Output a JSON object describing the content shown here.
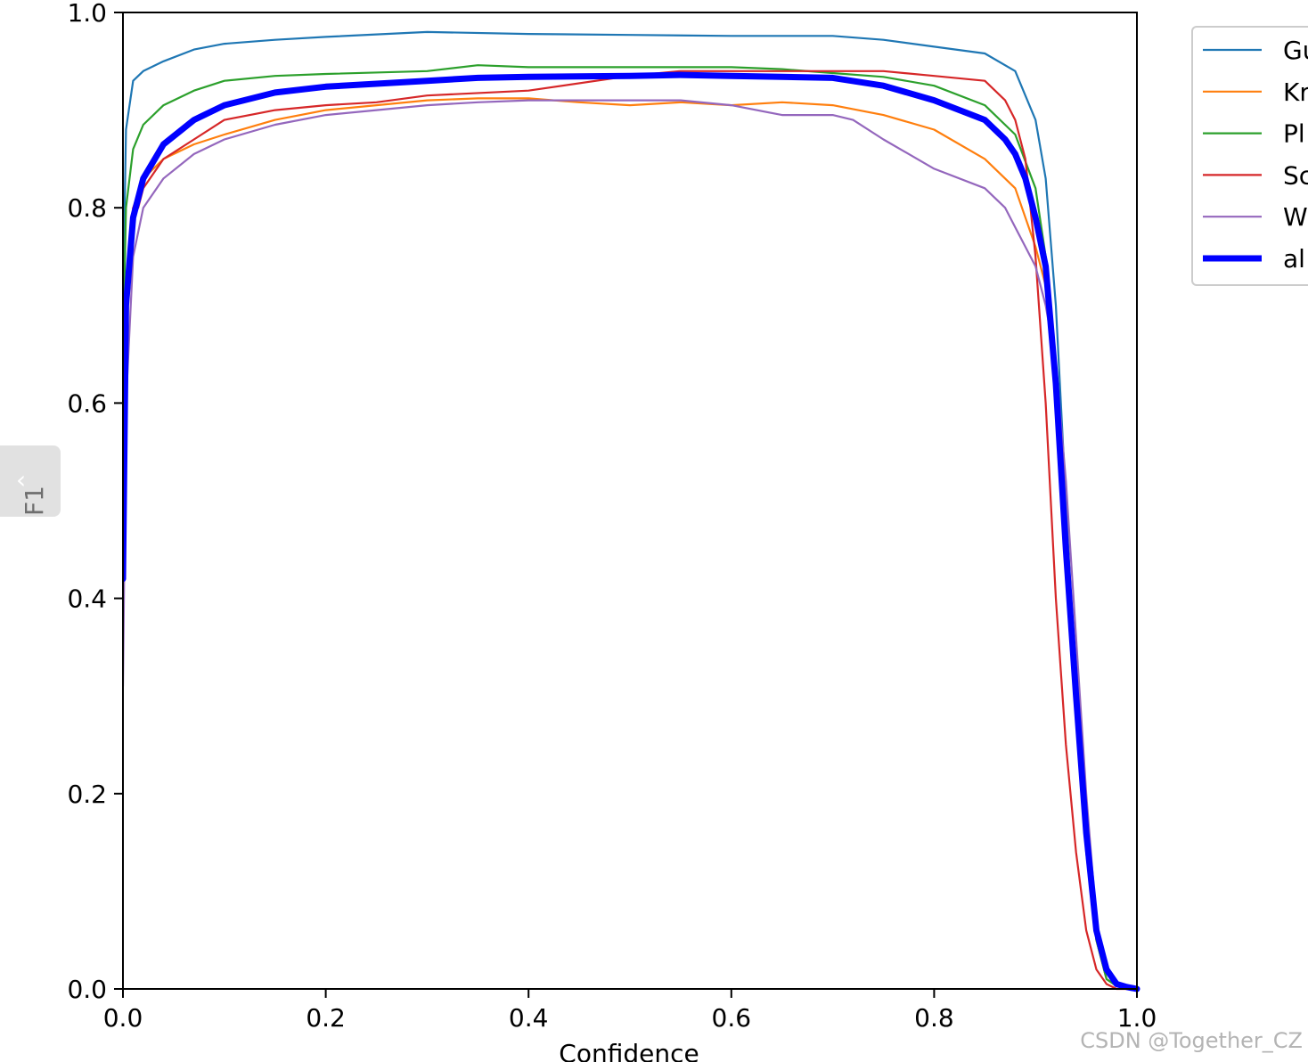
{
  "chart_data": {
    "type": "line",
    "xlabel": "Confidence",
    "ylabel": "F1",
    "xlim": [
      0.0,
      1.0
    ],
    "ylim": [
      0.0,
      1.0
    ],
    "x_ticks": [
      "0.0",
      "0.2",
      "0.4",
      "0.6",
      "0.8",
      "1.0"
    ],
    "y_ticks": [
      "0.0",
      "0.2",
      "0.4",
      "0.6",
      "0.8",
      "1.0"
    ],
    "grid": false,
    "legend_position": "outside-top-right",
    "series": [
      {
        "name": "Gu",
        "color": "#1f77b4",
        "linewidth": "thin",
        "x": [
          0.0,
          0.003,
          0.01,
          0.02,
          0.04,
          0.07,
          0.1,
          0.15,
          0.2,
          0.3,
          0.4,
          0.5,
          0.6,
          0.7,
          0.75,
          0.8,
          0.85,
          0.88,
          0.9,
          0.91,
          0.92,
          0.93,
          0.94,
          0.95,
          0.96,
          0.97,
          0.98,
          1.0
        ],
        "y": [
          0.7,
          0.88,
          0.93,
          0.94,
          0.95,
          0.962,
          0.968,
          0.972,
          0.975,
          0.98,
          0.978,
          0.977,
          0.976,
          0.976,
          0.972,
          0.965,
          0.958,
          0.94,
          0.89,
          0.83,
          0.7,
          0.5,
          0.3,
          0.14,
          0.05,
          0.01,
          0.003,
          0.0
        ]
      },
      {
        "name": "Kr",
        "color": "#ff7f0e",
        "linewidth": "thin",
        "x": [
          0.0,
          0.003,
          0.01,
          0.02,
          0.04,
          0.07,
          0.1,
          0.15,
          0.2,
          0.3,
          0.35,
          0.4,
          0.45,
          0.5,
          0.55,
          0.6,
          0.65,
          0.7,
          0.75,
          0.8,
          0.85,
          0.88,
          0.9,
          0.91,
          0.92,
          0.93,
          0.94,
          0.95,
          0.96,
          0.97,
          0.98,
          1.0
        ],
        "y": [
          0.55,
          0.72,
          0.8,
          0.83,
          0.85,
          0.865,
          0.875,
          0.89,
          0.9,
          0.91,
          0.912,
          0.912,
          0.908,
          0.905,
          0.908,
          0.905,
          0.908,
          0.905,
          0.895,
          0.88,
          0.85,
          0.82,
          0.76,
          0.72,
          0.62,
          0.46,
          0.3,
          0.15,
          0.05,
          0.01,
          0.003,
          0.0
        ]
      },
      {
        "name": "Pl",
        "color": "#2ca02c",
        "linewidth": "thin",
        "x": [
          0.0,
          0.003,
          0.01,
          0.02,
          0.04,
          0.07,
          0.1,
          0.15,
          0.2,
          0.3,
          0.35,
          0.4,
          0.5,
          0.6,
          0.65,
          0.7,
          0.75,
          0.8,
          0.85,
          0.88,
          0.9,
          0.91,
          0.92,
          0.93,
          0.94,
          0.95,
          0.96,
          0.97,
          0.98,
          1.0
        ],
        "y": [
          0.65,
          0.8,
          0.86,
          0.885,
          0.905,
          0.92,
          0.93,
          0.935,
          0.937,
          0.94,
          0.946,
          0.944,
          0.944,
          0.944,
          0.942,
          0.938,
          0.934,
          0.925,
          0.905,
          0.875,
          0.82,
          0.75,
          0.62,
          0.45,
          0.3,
          0.15,
          0.05,
          0.01,
          0.003,
          0.0
        ]
      },
      {
        "name": "Sc",
        "color": "#d62728",
        "linewidth": "thin",
        "x": [
          0.0,
          0.003,
          0.01,
          0.015,
          0.02,
          0.04,
          0.07,
          0.1,
          0.15,
          0.2,
          0.25,
          0.3,
          0.4,
          0.5,
          0.55,
          0.6,
          0.65,
          0.7,
          0.75,
          0.8,
          0.85,
          0.87,
          0.88,
          0.89,
          0.9,
          0.91,
          0.92,
          0.93,
          0.94,
          0.95,
          0.96,
          0.97,
          0.98,
          1.0
        ],
        "y": [
          0.42,
          0.7,
          0.8,
          0.8,
          0.82,
          0.85,
          0.87,
          0.89,
          0.9,
          0.905,
          0.908,
          0.915,
          0.92,
          0.935,
          0.94,
          0.94,
          0.94,
          0.94,
          0.94,
          0.935,
          0.93,
          0.91,
          0.89,
          0.85,
          0.75,
          0.6,
          0.4,
          0.25,
          0.14,
          0.06,
          0.02,
          0.005,
          0.0,
          0.0
        ]
      },
      {
        "name": "W",
        "color": "#9467bd",
        "linewidth": "thin",
        "x": [
          0.0,
          0.003,
          0.01,
          0.02,
          0.04,
          0.07,
          0.1,
          0.15,
          0.2,
          0.25,
          0.3,
          0.35,
          0.4,
          0.45,
          0.5,
          0.55,
          0.6,
          0.65,
          0.7,
          0.72,
          0.75,
          0.8,
          0.85,
          0.87,
          0.88,
          0.89,
          0.9,
          0.91,
          0.92,
          0.93,
          0.94,
          0.95,
          0.96,
          0.97,
          0.98,
          1.0
        ],
        "y": [
          0.31,
          0.6,
          0.75,
          0.8,
          0.83,
          0.855,
          0.87,
          0.885,
          0.895,
          0.9,
          0.905,
          0.908,
          0.91,
          0.91,
          0.91,
          0.91,
          0.905,
          0.895,
          0.895,
          0.89,
          0.87,
          0.84,
          0.82,
          0.8,
          0.78,
          0.76,
          0.74,
          0.7,
          0.64,
          0.52,
          0.36,
          0.2,
          0.07,
          0.02,
          0.005,
          0.0
        ]
      },
      {
        "name": "al",
        "color": "#0000ff",
        "linewidth": "thick",
        "x": [
          0.0,
          0.003,
          0.01,
          0.02,
          0.04,
          0.07,
          0.1,
          0.15,
          0.2,
          0.3,
          0.35,
          0.4,
          0.5,
          0.55,
          0.6,
          0.65,
          0.7,
          0.75,
          0.8,
          0.85,
          0.87,
          0.88,
          0.89,
          0.9,
          0.91,
          0.92,
          0.93,
          0.94,
          0.95,
          0.96,
          0.97,
          0.98,
          0.99,
          1.0
        ],
        "y": [
          0.42,
          0.7,
          0.79,
          0.83,
          0.865,
          0.89,
          0.905,
          0.918,
          0.924,
          0.93,
          0.933,
          0.934,
          0.935,
          0.936,
          0.935,
          0.934,
          0.933,
          0.925,
          0.91,
          0.89,
          0.87,
          0.855,
          0.83,
          0.79,
          0.74,
          0.62,
          0.45,
          0.3,
          0.16,
          0.06,
          0.02,
          0.005,
          0.002,
          0.0
        ]
      }
    ]
  },
  "watermark": "CSDN @Together_CZ",
  "back_tab_icon": "‹"
}
